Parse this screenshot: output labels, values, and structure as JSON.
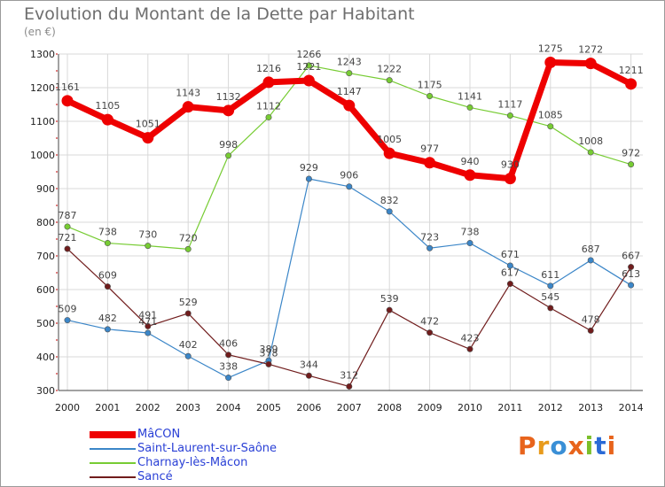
{
  "title": "Evolution du Montant de la Dette par Habitant",
  "subtitle": "(en €)",
  "brand": "Proxiti",
  "colors": {
    "grid": "#d8d8d8",
    "axis": "#444444",
    "legend_text": "#2a40d6",
    "brand_letters": [
      "#e8641c",
      "#e89b1c",
      "#3a8fd6",
      "#e8641c",
      "#7bbf2a",
      "#2a6ad6",
      "#e8641c"
    ]
  },
  "chart_data": {
    "type": "line",
    "title": "Evolution du Montant de la Dette par Habitant",
    "subtitle": "(en €)",
    "xlabel": "",
    "ylabel": "",
    "x": [
      "2000",
      "2001",
      "2002",
      "2003",
      "2004",
      "2005",
      "2006",
      "2007",
      "2008",
      "2009",
      "2010",
      "2011",
      "2012",
      "2013",
      "2014"
    ],
    "ylim": [
      300,
      1300
    ],
    "yticks": [
      300,
      400,
      500,
      600,
      700,
      800,
      900,
      1000,
      1100,
      1200,
      1300
    ],
    "grid": true,
    "legend_position": "bottom-left",
    "series": [
      {
        "name": "MâCON",
        "color": "#ee0000",
        "values": [
          1161,
          1105,
          1051,
          1143,
          1132,
          1216,
          1221,
          1147,
          1005,
          977,
          940,
          930,
          1275,
          1272,
          1211
        ]
      },
      {
        "name": "Saint-Laurent-sur-Saône",
        "color": "#3b86c8",
        "values": [
          509,
          482,
          471,
          402,
          338,
          389,
          929,
          906,
          832,
          723,
          738,
          671,
          611,
          687,
          613
        ]
      },
      {
        "name": "Charnay-lès-Mâcon",
        "color": "#77cc33",
        "values": [
          787,
          738,
          730,
          720,
          998,
          1112,
          1266,
          1243,
          1222,
          1175,
          1141,
          1117,
          1085,
          1008,
          972
        ]
      },
      {
        "name": "Sancé",
        "color": "#701c1c",
        "values": [
          721,
          609,
          491,
          529,
          406,
          378,
          344,
          312,
          539,
          472,
          423,
          617,
          545,
          478,
          667
        ]
      }
    ]
  }
}
